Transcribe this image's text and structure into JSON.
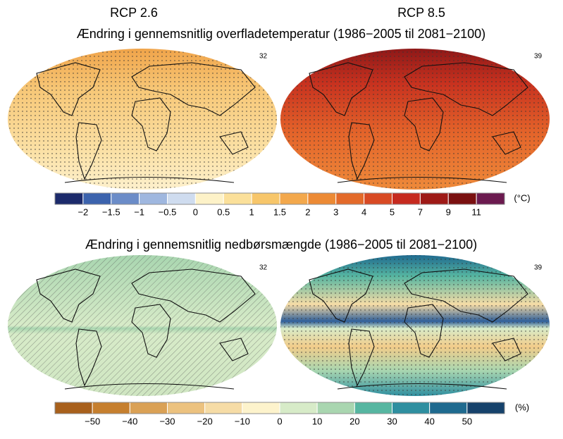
{
  "temperature": {
    "titles": [
      "RCP 2.6",
      "RCP 8.5"
    ],
    "subtitle": "Ændring i gennemsnitlig overfladetemperatur (1986−2005 til 2081−2100)",
    "model_counts": [
      "32",
      "39"
    ],
    "colorbar": {
      "unit": "(°C)",
      "labels": [
        "−2",
        "−1.5",
        "−1",
        "−0.5",
        "0",
        "0.5",
        "1",
        "1.5",
        "2",
        "3",
        "4",
        "5",
        "7",
        "9",
        "11"
      ],
      "colors": [
        "#1c2a6b",
        "#3c63ad",
        "#6b8cc8",
        "#9fb7df",
        "#cfdcef",
        "#fdf2c8",
        "#fbe09a",
        "#f7c66a",
        "#f3a84c",
        "#ec8a35",
        "#e36a2a",
        "#d84a24",
        "#c62a1f",
        "#9e1a17",
        "#7a1010",
        "#6b1a4f"
      ]
    }
  },
  "precipitation": {
    "subtitle": "Ændring i gennemsnitlig nedbørsmængde (1986−2005 til 2081−2100)",
    "model_counts": [
      "32",
      "39"
    ],
    "colorbar": {
      "unit": "(%)",
      "labels": [
        "−50",
        "−40",
        "−30",
        "−20",
        "−10",
        "0",
        "10",
        "20",
        "30",
        "40",
        "50"
      ],
      "colors": [
        "#a8601c",
        "#c67f2e",
        "#daa155",
        "#ecc27f",
        "#f6dca6",
        "#fdf3cc",
        "#d7ebc8",
        "#a9d6b0",
        "#56b6a1",
        "#2f8fa0",
        "#1f6a8f",
        "#16426b"
      ]
    }
  }
}
